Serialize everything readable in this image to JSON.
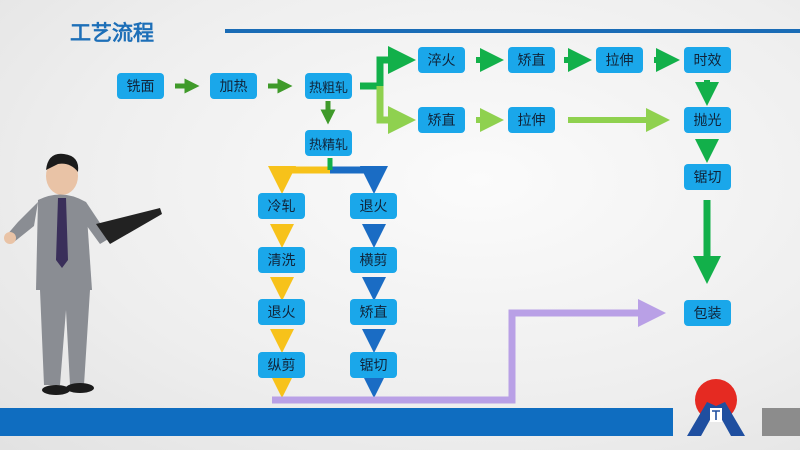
{
  "header": {
    "title": "工艺流程"
  },
  "steps": {
    "mill_face": "铣面",
    "heating": "加热",
    "hot_rough_rolling": "热粗轧",
    "hot_finish_rolling": "热精轧",
    "quench": "淬火",
    "straighten_top": "矫直",
    "stretch_top": "拉伸",
    "aging": "时效",
    "straighten_mid": "矫直",
    "stretch_mid": "拉伸",
    "polish": "抛光",
    "saw_right": "锯切",
    "cold_rolling": "冷轧",
    "cleaning": "清洗",
    "anneal_left": "退火",
    "slitting": "纵剪",
    "anneal_right": "退火",
    "cross_cut": "横剪",
    "straighten_low": "矫直",
    "saw_low": "锯切",
    "packing": "包装"
  },
  "colors": {
    "box": "#1aa7ea",
    "title": "#1d6fb8",
    "dark_green": "#12b04a",
    "light_green": "#8fd14f",
    "yellow": "#f7c21a",
    "blue_arrow": "#1a6cc4",
    "purple": "#b9a0e6",
    "band": "#0f6dc0"
  }
}
